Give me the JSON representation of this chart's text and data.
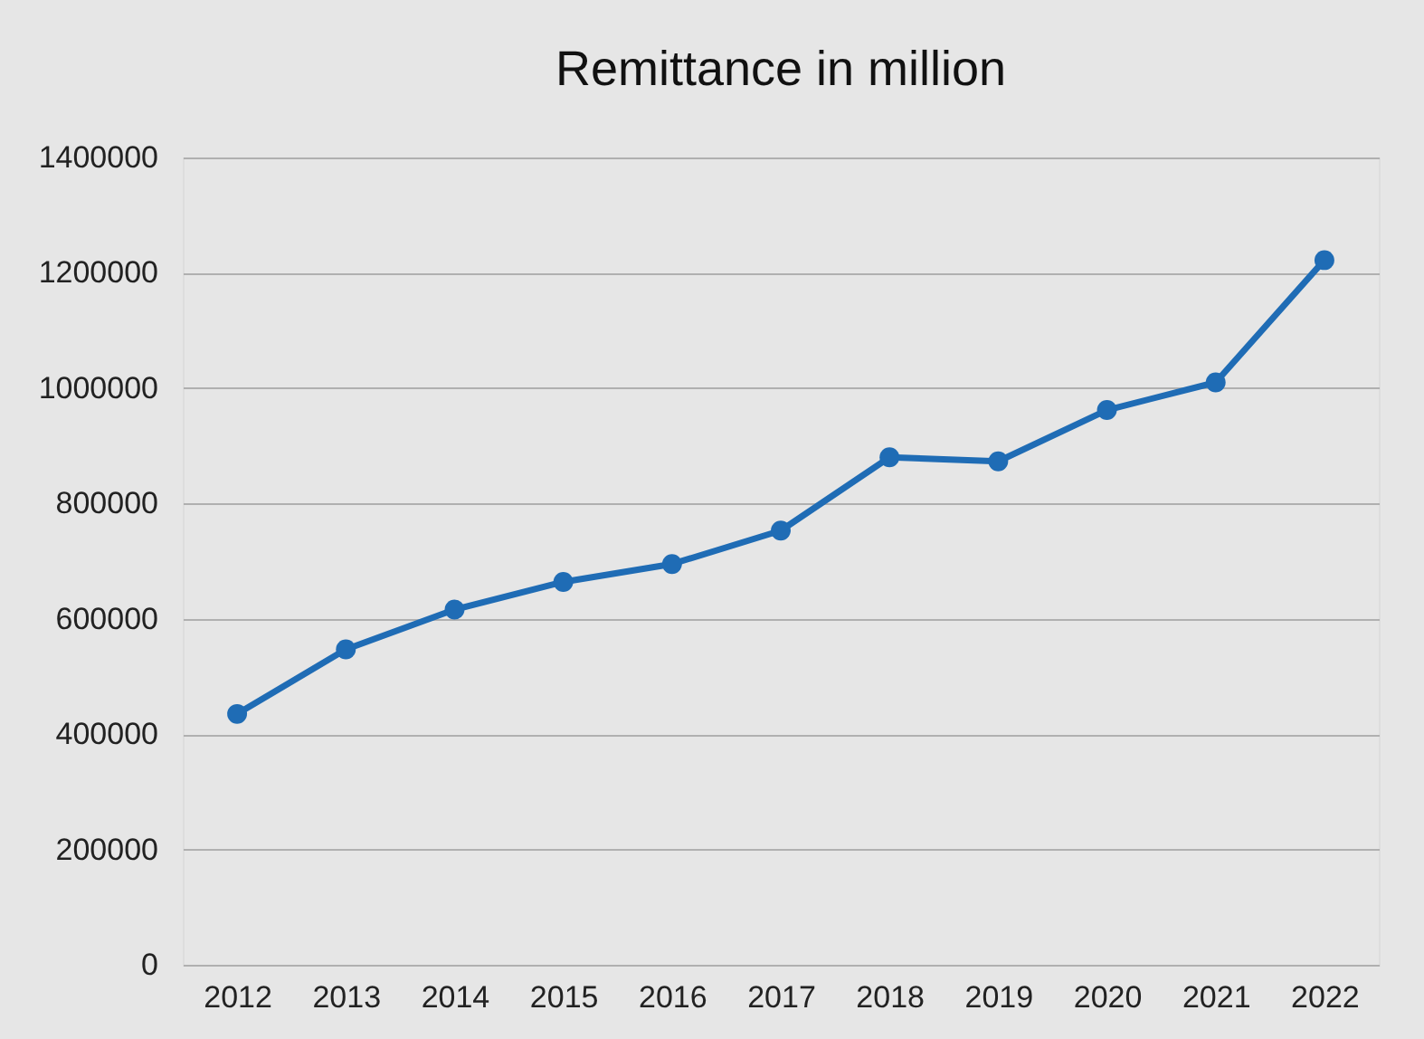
{
  "chart_data": {
    "type": "line",
    "title": "Remittance in million",
    "categories": [
      "2012",
      "2013",
      "2014",
      "2015",
      "2016",
      "2017",
      "2018",
      "2019",
      "2020",
      "2021",
      "2022"
    ],
    "series": [
      {
        "color": "#1f6cb5",
        "values": [
          435000,
          547000,
          616000,
          664000,
          695000,
          753000,
          880000,
          873000,
          962000,
          1010000,
          1222000
        ]
      }
    ],
    "ylim": [
      0,
      1400000
    ],
    "yticks": [
      0,
      200000,
      400000,
      600000,
      800000,
      1000000,
      1200000,
      1400000
    ],
    "grid": "y",
    "marker": "circle",
    "line_style": "solid",
    "legend": false
  }
}
